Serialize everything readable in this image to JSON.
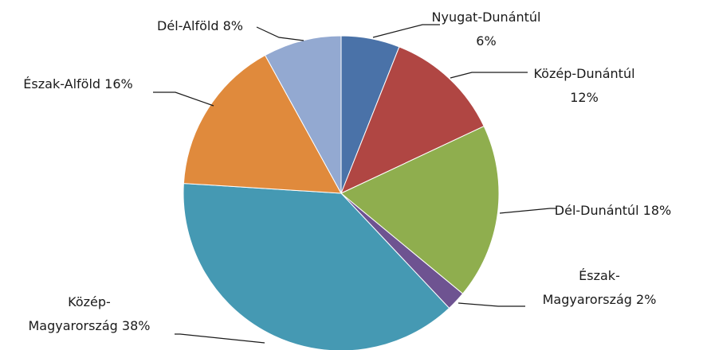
{
  "chart_data": {
    "type": "pie",
    "title": "",
    "start_angle_deg": 0,
    "direction": "clockwise",
    "legend": "none",
    "slices": [
      {
        "name": "Nyugat-Dunántúl",
        "value": 6,
        "label_lines": [
          "Nyugat-Dunántúl",
          "6%"
        ],
        "color": "#4a72a8"
      },
      {
        "name": "Közép-Dunántúl",
        "value": 12,
        "label_lines": [
          "Közép-Dunántúl",
          "12%"
        ],
        "color": "#b04643"
      },
      {
        "name": "Dél-Dunántúl",
        "value": 18,
        "label_lines": [
          "Dél-Dunántúl 18%"
        ],
        "color": "#8fae4e"
      },
      {
        "name": "Észak-Magyarország",
        "value": 2,
        "label_lines": [
          "Észak-",
          "Magyarország 2%"
        ],
        "color": "#6e5391"
      },
      {
        "name": "Közép-Magyarország",
        "value": 38,
        "label_lines": [
          "Közép-",
          "Magyarország 38%"
        ],
        "color": "#4599b3"
      },
      {
        "name": "Észak-Alföld",
        "value": 16,
        "label_lines": [
          "Észak-Alföld 16%"
        ],
        "color": "#e08a3c"
      },
      {
        "name": "Dél-Alföld",
        "value": 8,
        "label_lines": [
          "Dél-Alföld 8%"
        ],
        "color": "#93a9d1"
      }
    ]
  }
}
